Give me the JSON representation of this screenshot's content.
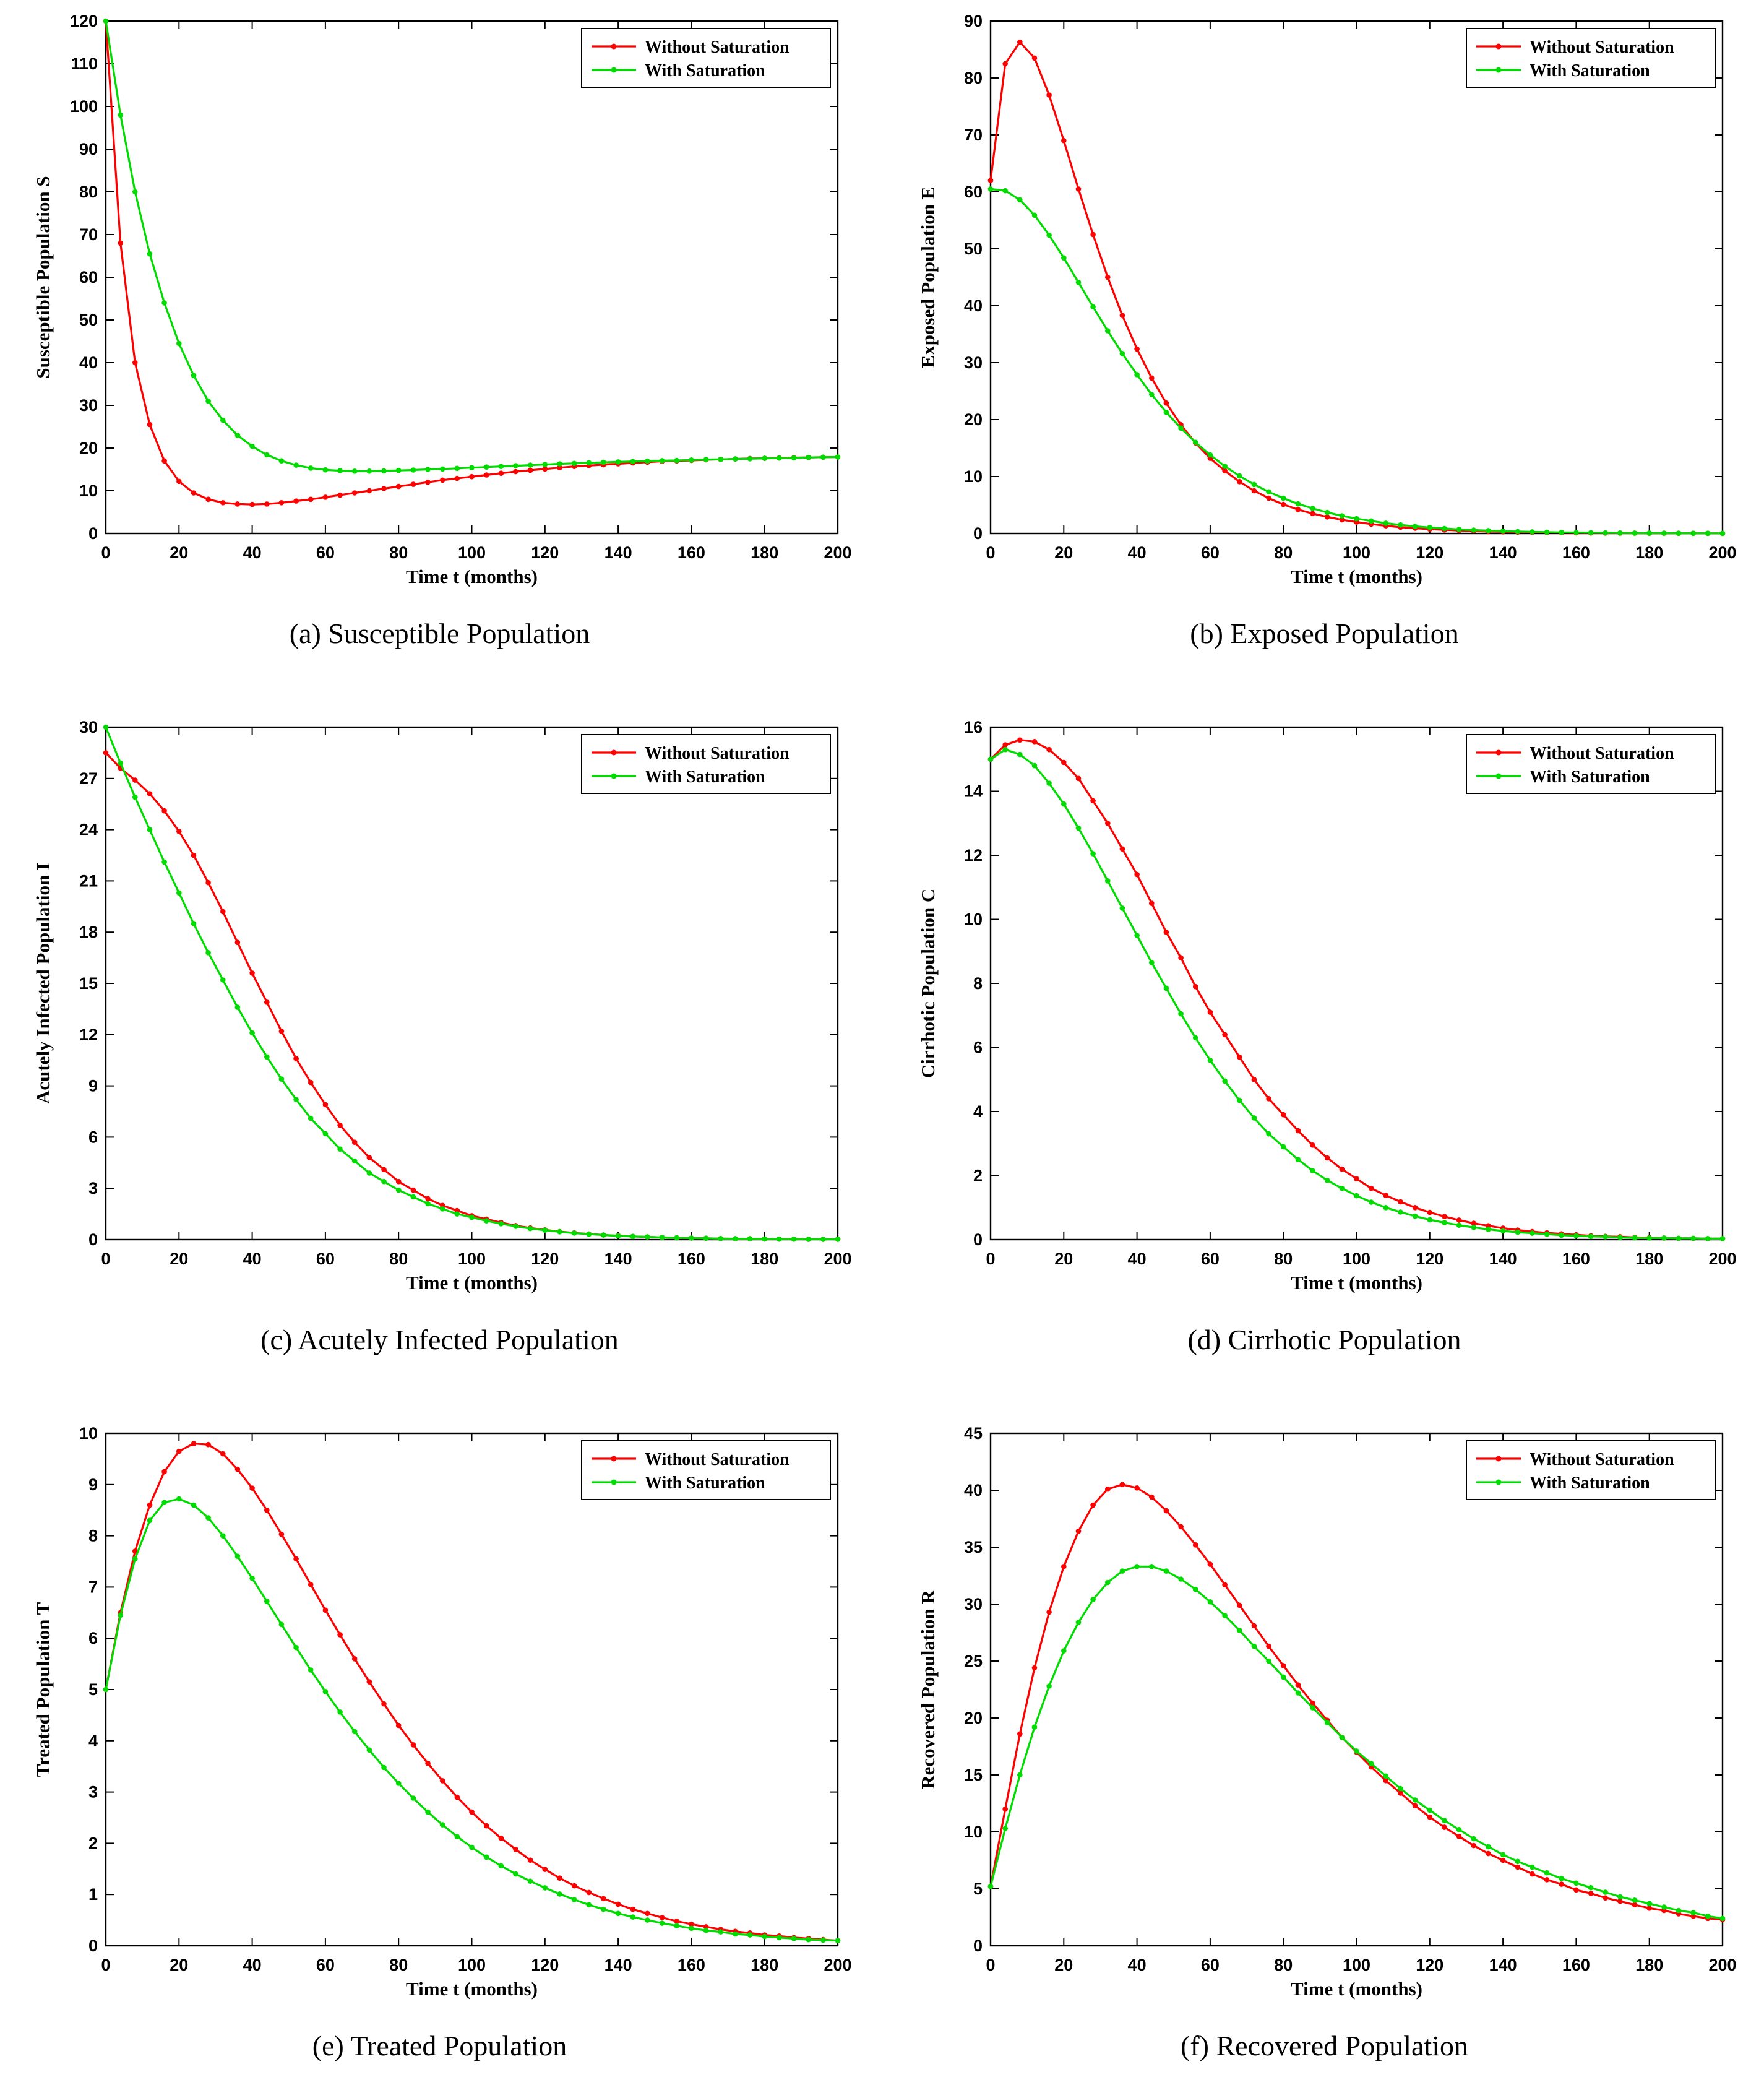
{
  "page": {
    "background": "#ffffff"
  },
  "x_months": [
    0,
    4,
    8,
    12,
    16,
    20,
    24,
    28,
    32,
    36,
    40,
    44,
    48,
    52,
    56,
    60,
    64,
    68,
    72,
    76,
    80,
    84,
    88,
    92,
    96,
    100,
    104,
    108,
    112,
    116,
    120,
    124,
    128,
    132,
    136,
    140,
    144,
    148,
    152,
    156,
    160,
    164,
    168,
    172,
    176,
    180,
    184,
    188,
    192,
    196,
    200
  ],
  "legend": {
    "without_label": "Without Saturation",
    "with_label": "With Saturation",
    "position": "top-right"
  },
  "colors": {
    "without": "#FF0000",
    "with": "#00DC00",
    "axis": "#000000"
  },
  "chart_data": [
    {
      "type": "line",
      "caption": "(a) Susceptible Population",
      "xlabel": "Time t (months)",
      "ylabel": "Susceptible Population S",
      "xlim": [
        0,
        200
      ],
      "xtick_step": 20,
      "ylim": [
        0,
        120
      ],
      "ytick_step": 10,
      "grid": false,
      "markers": true,
      "legend_position": "top-right",
      "series": [
        {
          "name": "Without Saturation",
          "color": "#FF0000",
          "values": [
            120,
            68,
            40,
            25.5,
            17,
            12.2,
            9.5,
            8,
            7.2,
            6.9,
            6.8,
            6.9,
            7.2,
            7.6,
            8,
            8.5,
            9,
            9.5,
            10,
            10.5,
            11,
            11.5,
            12,
            12.5,
            12.9,
            13.3,
            13.7,
            14.1,
            14.5,
            14.8,
            15.1,
            15.4,
            15.7,
            15.9,
            16.1,
            16.3,
            16.5,
            16.7,
            16.9,
            17,
            17.1,
            17.25,
            17.35,
            17.45,
            17.55,
            17.6,
            17.7,
            17.75,
            17.8,
            17.85,
            17.9
          ]
        },
        {
          "name": "With Saturation",
          "color": "#00DC00",
          "values": [
            120,
            98,
            80,
            65.5,
            54,
            44.5,
            37,
            31,
            26.5,
            23,
            20.4,
            18.4,
            17,
            16,
            15.3,
            14.9,
            14.7,
            14.6,
            14.6,
            14.65,
            14.75,
            14.85,
            15,
            15.1,
            15.25,
            15.4,
            15.55,
            15.7,
            15.85,
            16,
            16.15,
            16.3,
            16.4,
            16.55,
            16.65,
            16.75,
            16.85,
            16.95,
            17.05,
            17.1,
            17.2,
            17.3,
            17.35,
            17.45,
            17.5,
            17.6,
            17.65,
            17.7,
            17.8,
            17.85,
            17.9
          ]
        }
      ]
    },
    {
      "type": "line",
      "caption": "(b) Exposed Population",
      "xlabel": "Time t (months)",
      "ylabel": "Exposed Population E",
      "xlim": [
        0,
        200
      ],
      "xtick_step": 20,
      "ylim": [
        0,
        90
      ],
      "ytick_step": 10,
      "grid": false,
      "markers": true,
      "legend_position": "top-right",
      "series": [
        {
          "name": "Without Saturation",
          "color": "#FF0000",
          "values": [
            62,
            82.5,
            86.3,
            83.5,
            77,
            69,
            60.5,
            52.5,
            45,
            38.3,
            32.4,
            27.3,
            22.9,
            19.1,
            15.9,
            13.2,
            11,
            9.1,
            7.5,
            6.2,
            5.1,
            4.2,
            3.5,
            2.9,
            2.4,
            2,
            1.65,
            1.35,
            1.1,
            0.92,
            0.76,
            0.63,
            0.52,
            0.43,
            0.35,
            0.29,
            0.24,
            0.2,
            0.17,
            0.14,
            0.11,
            0.09,
            0.08,
            0.06,
            0.05,
            0.04,
            0.04,
            0.03,
            0.03,
            0.02,
            0.02
          ]
        },
        {
          "name": "With Saturation",
          "color": "#00DC00",
          "values": [
            60.5,
            60.2,
            58.6,
            55.9,
            52.4,
            48.4,
            44.1,
            39.8,
            35.6,
            31.6,
            27.9,
            24.4,
            21.3,
            18.5,
            16,
            13.8,
            11.8,
            10.1,
            8.6,
            7.3,
            6.2,
            5.2,
            4.4,
            3.7,
            3.1,
            2.6,
            2.2,
            1.8,
            1.5,
            1.25,
            1.05,
            0.87,
            0.72,
            0.6,
            0.5,
            0.41,
            0.34,
            0.28,
            0.23,
            0.19,
            0.16,
            0.13,
            0.11,
            0.09,
            0.07,
            0.06,
            0.05,
            0.04,
            0.03,
            0.03,
            0.02
          ]
        }
      ]
    },
    {
      "type": "line",
      "caption": "(c) Acutely Infected Population",
      "xlabel": "Time t (months)",
      "ylabel": "Acutely Infected Population I",
      "xlim": [
        0,
        200
      ],
      "xtick_step": 20,
      "ylim": [
        0,
        30
      ],
      "ytick_step": 3,
      "grid": false,
      "markers": true,
      "legend_position": "top-right",
      "series": [
        {
          "name": "Without Saturation",
          "color": "#FF0000",
          "values": [
            28.5,
            27.6,
            26.9,
            26.1,
            25.1,
            23.9,
            22.5,
            20.9,
            19.2,
            17.4,
            15.6,
            13.9,
            12.2,
            10.6,
            9.2,
            7.9,
            6.7,
            5.7,
            4.8,
            4.1,
            3.4,
            2.9,
            2.4,
            2,
            1.7,
            1.4,
            1.2,
            1,
            0.82,
            0.68,
            0.57,
            0.47,
            0.39,
            0.33,
            0.27,
            0.23,
            0.19,
            0.16,
            0.13,
            0.11,
            0.09,
            0.08,
            0.06,
            0.05,
            0.05,
            0.04,
            0.03,
            0.03,
            0.02,
            0.02,
            0.02
          ]
        },
        {
          "name": "With Saturation",
          "color": "#00DC00",
          "values": [
            30,
            27.9,
            25.9,
            24,
            22.1,
            20.3,
            18.5,
            16.8,
            15.2,
            13.6,
            12.1,
            10.7,
            9.4,
            8.2,
            7.1,
            6.2,
            5.3,
            4.6,
            3.9,
            3.4,
            2.9,
            2.5,
            2.1,
            1.8,
            1.5,
            1.3,
            1.1,
            0.93,
            0.78,
            0.65,
            0.55,
            0.46,
            0.38,
            0.32,
            0.27,
            0.22,
            0.19,
            0.16,
            0.13,
            0.11,
            0.09,
            0.08,
            0.06,
            0.05,
            0.05,
            0.04,
            0.03,
            0.03,
            0.02,
            0.02,
            0.02
          ]
        }
      ]
    },
    {
      "type": "line",
      "caption": "(d) Cirrhotic Population",
      "xlabel": "Time t (months)",
      "ylabel": "Cirrhotic Population C",
      "xlim": [
        0,
        200
      ],
      "xtick_step": 20,
      "ylim": [
        0,
        16
      ],
      "ytick_step": 2,
      "grid": false,
      "markers": true,
      "legend_position": "top-right",
      "series": [
        {
          "name": "Without Saturation",
          "color": "#FF0000",
          "values": [
            15,
            15.45,
            15.6,
            15.55,
            15.3,
            14.9,
            14.4,
            13.7,
            13,
            12.2,
            11.4,
            10.5,
            9.6,
            8.8,
            7.9,
            7.1,
            6.4,
            5.7,
            5,
            4.4,
            3.9,
            3.4,
            2.95,
            2.55,
            2.2,
            1.9,
            1.6,
            1.38,
            1.18,
            1,
            0.85,
            0.72,
            0.61,
            0.51,
            0.43,
            0.36,
            0.3,
            0.25,
            0.21,
            0.18,
            0.15,
            0.12,
            0.1,
            0.09,
            0.07,
            0.06,
            0.05,
            0.04,
            0.04,
            0.03,
            0.03
          ]
        },
        {
          "name": "With Saturation",
          "color": "#00DC00",
          "values": [
            15,
            15.3,
            15.15,
            14.8,
            14.25,
            13.6,
            12.85,
            12.05,
            11.2,
            10.35,
            9.5,
            8.65,
            7.85,
            7.05,
            6.3,
            5.6,
            4.95,
            4.35,
            3.8,
            3.3,
            2.9,
            2.5,
            2.15,
            1.85,
            1.6,
            1.37,
            1.17,
            1,
            0.86,
            0.73,
            0.62,
            0.53,
            0.45,
            0.38,
            0.32,
            0.27,
            0.23,
            0.2,
            0.17,
            0.14,
            0.12,
            0.1,
            0.09,
            0.07,
            0.06,
            0.05,
            0.05,
            0.04,
            0.04,
            0.03,
            0.03
          ]
        }
      ]
    },
    {
      "type": "line",
      "caption": "(e) Treated Population",
      "xlabel": "Time t (months)",
      "ylabel": "Treated Population T",
      "xlim": [
        0,
        200
      ],
      "xtick_step": 20,
      "ylim": [
        0,
        10
      ],
      "ytick_step": 1,
      "grid": false,
      "markers": true,
      "legend_position": "top-right",
      "series": [
        {
          "name": "Without Saturation",
          "color": "#FF0000",
          "values": [
            5,
            6.5,
            7.7,
            8.6,
            9.25,
            9.65,
            9.8,
            9.78,
            9.6,
            9.3,
            8.93,
            8.5,
            8.03,
            7.55,
            7.05,
            6.55,
            6.07,
            5.6,
            5.15,
            4.72,
            4.3,
            3.92,
            3.56,
            3.22,
            2.9,
            2.61,
            2.34,
            2.1,
            1.88,
            1.67,
            1.49,
            1.32,
            1.17,
            1.04,
            0.92,
            0.81,
            0.71,
            0.63,
            0.55,
            0.48,
            0.42,
            0.37,
            0.32,
            0.28,
            0.25,
            0.21,
            0.19,
            0.16,
            0.14,
            0.12,
            0.1
          ]
        },
        {
          "name": "With Saturation",
          "color": "#00DC00",
          "values": [
            5,
            6.45,
            7.55,
            8.3,
            8.65,
            8.72,
            8.6,
            8.35,
            8,
            7.6,
            7.17,
            6.72,
            6.27,
            5.82,
            5.38,
            4.96,
            4.56,
            4.18,
            3.82,
            3.48,
            3.17,
            2.88,
            2.61,
            2.36,
            2.13,
            1.92,
            1.73,
            1.56,
            1.4,
            1.26,
            1.13,
            1.01,
            0.9,
            0.8,
            0.71,
            0.63,
            0.56,
            0.5,
            0.44,
            0.39,
            0.34,
            0.3,
            0.27,
            0.23,
            0.21,
            0.18,
            0.16,
            0.14,
            0.12,
            0.11,
            0.1
          ]
        }
      ]
    },
    {
      "type": "line",
      "caption": "(f) Recovered Population",
      "xlabel": "Time t (months)",
      "ylabel": "Recovered Population R",
      "xlim": [
        0,
        200
      ],
      "xtick_step": 20,
      "ylim": [
        0,
        45
      ],
      "ytick_step": 5,
      "grid": false,
      "markers": true,
      "legend_position": "top-right",
      "series": [
        {
          "name": "Without Saturation",
          "color": "#FF0000",
          "values": [
            5.2,
            12,
            18.6,
            24.4,
            29.3,
            33.3,
            36.4,
            38.7,
            40.1,
            40.5,
            40.2,
            39.4,
            38.2,
            36.8,
            35.2,
            33.5,
            31.7,
            29.9,
            28.1,
            26.3,
            24.6,
            22.9,
            21.3,
            19.8,
            18.3,
            17,
            15.7,
            14.5,
            13.4,
            12.3,
            11.3,
            10.4,
            9.6,
            8.8,
            8.1,
            7.5,
            6.9,
            6.3,
            5.8,
            5.4,
            4.9,
            4.6,
            4.2,
            3.9,
            3.6,
            3.3,
            3.1,
            2.8,
            2.6,
            2.4,
            2.3
          ]
        },
        {
          "name": "With Saturation",
          "color": "#00DC00",
          "values": [
            5.2,
            10.3,
            15,
            19.2,
            22.8,
            25.9,
            28.4,
            30.4,
            31.9,
            32.9,
            33.3,
            33.3,
            32.9,
            32.2,
            31.3,
            30.2,
            29,
            27.7,
            26.3,
            25,
            23.6,
            22.2,
            20.9,
            19.6,
            18.3,
            17.1,
            16,
            14.9,
            13.8,
            12.8,
            11.9,
            11,
            10.2,
            9.4,
            8.7,
            8,
            7.4,
            6.9,
            6.4,
            5.9,
            5.5,
            5.1,
            4.7,
            4.3,
            4,
            3.7,
            3.4,
            3.1,
            2.9,
            2.6,
            2.4
          ]
        }
      ]
    }
  ]
}
